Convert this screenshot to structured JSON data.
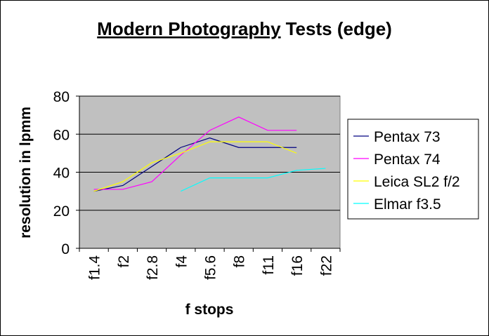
{
  "chart_data": {
    "type": "line",
    "title_parts": [
      "Modern Photography",
      "Tests (edge)"
    ],
    "x_label": "f stops",
    "y_label": "resolution in lpmm",
    "categories": [
      "f1.4",
      "f2",
      "f2.8",
      "f4",
      "f5.6",
      "f8",
      "f11",
      "f16",
      "f22"
    ],
    "series": [
      {
        "name": "Pentax 73",
        "color": "#000080",
        "values": [
          30,
          33,
          43,
          53,
          58,
          53,
          53,
          53,
          null
        ]
      },
      {
        "name": "Pentax 74",
        "color": "#ff00ff",
        "values": [
          31,
          31,
          35,
          49,
          62,
          69,
          62,
          62,
          null
        ]
      },
      {
        "name": "Leica SL2 f/2",
        "color": "#ffff00",
        "values": [
          30,
          35,
          45,
          50,
          56,
          56,
          56,
          50,
          null
        ]
      },
      {
        "name": "Elmar f3.5",
        "color": "#00ffff",
        "values": [
          null,
          null,
          null,
          30,
          37,
          37,
          37,
          41,
          42
        ]
      }
    ],
    "ylim": [
      0,
      80
    ],
    "yticks": [
      0,
      20,
      40,
      60,
      80
    ],
    "grid": true,
    "legend": "right"
  }
}
